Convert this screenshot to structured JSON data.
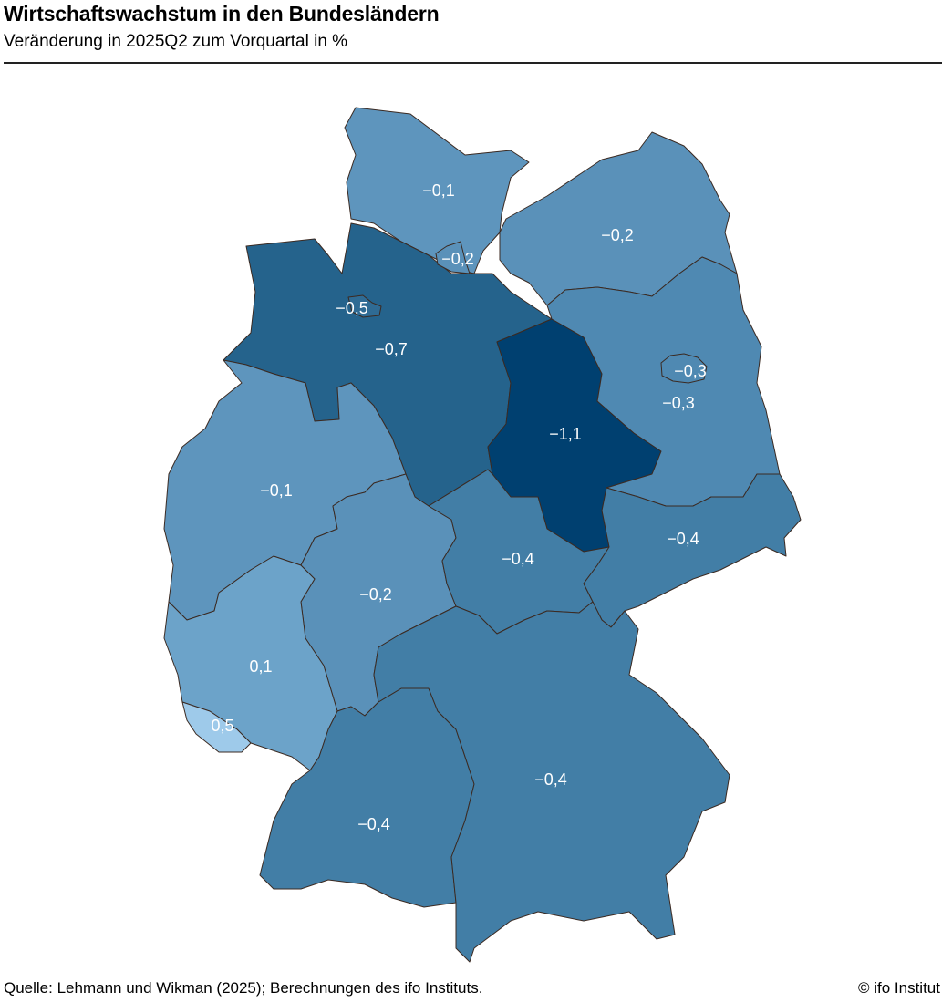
{
  "header": {
    "title": "Wirtschaftswachstum in den Bundesländern",
    "subtitle": "Veränderung in 2025Q2 zum Vorquartal in %"
  },
  "map": {
    "type": "choropleth",
    "region": "Germany",
    "regions": [
      {
        "id": "schleswig-holstein",
        "value": "−0,1",
        "color": "#5e95bd"
      },
      {
        "id": "hamburg",
        "value": "−0,2",
        "color": "#5a91b9"
      },
      {
        "id": "mecklenburg-vorpommern",
        "value": "−0,2",
        "color": "#5a91b9"
      },
      {
        "id": "bremen",
        "value": "−0,5",
        "color": "#2f6b94"
      },
      {
        "id": "niedersachsen",
        "value": "−0,7",
        "color": "#25638c"
      },
      {
        "id": "berlin",
        "value": "−0,3",
        "color": "#4f89b2"
      },
      {
        "id": "brandenburg",
        "value": "−0,3",
        "color": "#4f89b2"
      },
      {
        "id": "sachsen-anhalt",
        "value": "−1,1",
        "color": "#004070"
      },
      {
        "id": "nordrhein-westfalen",
        "value": "−0,1",
        "color": "#5e95bd"
      },
      {
        "id": "hessen",
        "value": "−0,2",
        "color": "#5a91b9"
      },
      {
        "id": "thueringen",
        "value": "−0,4",
        "color": "#427ea6"
      },
      {
        "id": "sachsen",
        "value": "−0,4",
        "color": "#427ea6"
      },
      {
        "id": "rheinland-pfalz",
        "value": "0,1",
        "color": "#6ca3c9"
      },
      {
        "id": "saarland",
        "value": "0,5",
        "color": "#9ecaea"
      },
      {
        "id": "baden-wuerttemberg",
        "value": "−0,4",
        "color": "#427ea6"
      },
      {
        "id": "bayern",
        "value": "−0,4",
        "color": "#427ea6"
      }
    ],
    "border_color": "#3b2a22",
    "label_color": "#ffffff"
  },
  "footer": {
    "source": "Quelle: Lehmann und Wikman (2025); Berechnungen des ifo Instituts.",
    "copyright": "© ifo Institut"
  }
}
